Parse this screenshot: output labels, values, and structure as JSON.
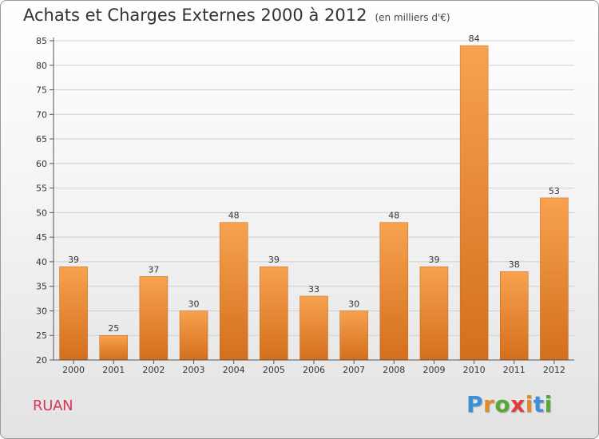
{
  "header": {
    "title": "Achats et Charges Externes 2000 à 2012",
    "subtitle": "(en milliers d'€)"
  },
  "commune": "RUAN",
  "logo": {
    "letters": [
      "P",
      "r",
      "o",
      "x",
      "i",
      "t",
      "i"
    ],
    "colors": [
      "#3d8fd6",
      "#e08a2c",
      "#56a832",
      "#e23c3c",
      "#e08a2c",
      "#3d8fd6",
      "#56a832"
    ]
  },
  "chart_data": {
    "type": "bar",
    "title": "Achats et Charges Externes 2000 à 2012",
    "subtitle": "(en milliers d'€)",
    "xlabel": "",
    "ylabel": "",
    "categories": [
      "2000",
      "2001",
      "2002",
      "2003",
      "2004",
      "2005",
      "2006",
      "2007",
      "2008",
      "2009",
      "2010",
      "2011",
      "2012"
    ],
    "values": [
      39,
      25,
      37,
      30,
      48,
      39,
      33,
      30,
      48,
      39,
      84,
      38,
      53
    ],
    "ylim": [
      20,
      85
    ],
    "yticks": [
      20,
      25,
      30,
      35,
      40,
      45,
      50,
      55,
      60,
      65,
      70,
      75,
      80,
      85
    ],
    "grid": true,
    "bar_color_top": "#f7a24f",
    "bar_color_bottom": "#d36f1c"
  }
}
